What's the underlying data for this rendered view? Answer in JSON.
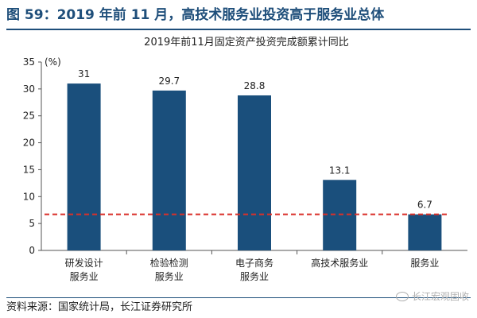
{
  "figure": {
    "title": "图 59：2019 年前 11 月，高技术服务业投资高于服务业总体",
    "source": "资料来源：国家统计局，长江证券研究所",
    "watermark": "长江宏观固收"
  },
  "colors": {
    "title": "#1e4e7a",
    "bar": "#1a4f7c",
    "reference_line": "#d9302a"
  },
  "chart_data": {
    "type": "bar",
    "title": "2019年前11月固定资产投资完成额累计同比",
    "unit_label": "(%)",
    "categories": [
      [
        "研发设计",
        "服务业"
      ],
      [
        "检验检测",
        "服务业"
      ],
      [
        "电子商务",
        "服务业"
      ],
      [
        "高技术服务业"
      ],
      [
        "服务业"
      ]
    ],
    "values": [
      31,
      29.7,
      28.8,
      13.1,
      6.7
    ],
    "data_labels": [
      "31",
      "29.7",
      "28.8",
      "13.1",
      "6.7"
    ],
    "ylim": [
      0,
      35
    ],
    "yticks": [
      0,
      5,
      10,
      15,
      20,
      25,
      30,
      35
    ],
    "reference_line": {
      "value": 6.7,
      "style": "dashed"
    },
    "grid": false,
    "legend": "none"
  }
}
